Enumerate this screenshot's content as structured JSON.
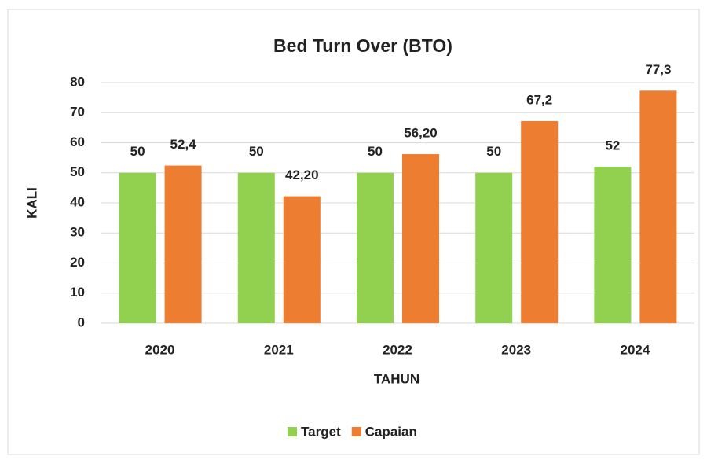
{
  "chart_data": {
    "type": "bar",
    "title": "Bed Turn Over (BTO)",
    "x_label": "TAHUN",
    "y_label": "KALI",
    "categories": [
      "2020",
      "2021",
      "2022",
      "2023",
      "2024"
    ],
    "series": [
      {
        "name": "Target",
        "color": "#92d050",
        "values": [
          50,
          50,
          50,
          50,
          52
        ]
      },
      {
        "name": "Capaian",
        "color": "#ed7d31",
        "values": [
          52.4,
          42.2,
          56.2,
          67.2,
          77.3
        ],
        "value_labels": [
          "52,4",
          "42,20",
          "56,20",
          "67,2",
          "77,3"
        ]
      }
    ],
    "ylim": [
      0,
      80
    ],
    "yticks": [
      0,
      10,
      20,
      30,
      40,
      50,
      60,
      70,
      80
    ],
    "grid": true,
    "legend": "bottom"
  }
}
